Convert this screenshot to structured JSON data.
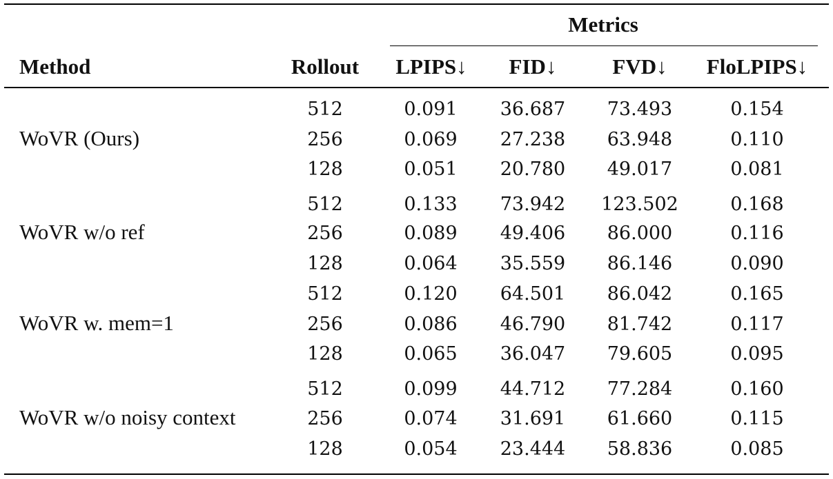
{
  "table": {
    "group_header": "Metrics",
    "columns": {
      "method": "Method",
      "rollout": "Rollout",
      "lpips": "LPIPS↓",
      "fid": "FID↓",
      "fvd": "FVD↓",
      "flolpips": "FloLPIPS↓"
    },
    "groups": [
      {
        "method": "WoVR (Ours)",
        "rows": [
          {
            "rollout": "512",
            "lpips": "0.091",
            "fid": "36.687",
            "fvd": "73.493",
            "flolpips": "0.154"
          },
          {
            "rollout": "256",
            "lpips": "0.069",
            "fid": "27.238",
            "fvd": "63.948",
            "flolpips": "0.110"
          },
          {
            "rollout": "128",
            "lpips": "0.051",
            "fid": "20.780",
            "fvd": "49.017",
            "flolpips": "0.081"
          }
        ]
      },
      {
        "method": "WoVR w/o ref",
        "rows": [
          {
            "rollout": "512",
            "lpips": "0.133",
            "fid": "73.942",
            "fvd": "123.502",
            "flolpips": "0.168"
          },
          {
            "rollout": "256",
            "lpips": "0.089",
            "fid": "49.406",
            "fvd": "86.000",
            "flolpips": "0.116"
          },
          {
            "rollout": "128",
            "lpips": "0.064",
            "fid": "35.559",
            "fvd": "86.146",
            "flolpips": "0.090"
          }
        ]
      },
      {
        "method": "WoVR w. mem=1",
        "rows": [
          {
            "rollout": "512",
            "lpips": "0.120",
            "fid": "64.501",
            "fvd": "86.042",
            "flolpips": "0.165"
          },
          {
            "rollout": "256",
            "lpips": "0.086",
            "fid": "46.790",
            "fvd": "81.742",
            "flolpips": "0.117"
          },
          {
            "rollout": "128",
            "lpips": "0.065",
            "fid": "36.047",
            "fvd": "79.605",
            "flolpips": "0.095"
          }
        ]
      },
      {
        "method": "WoVR w/o noisy context",
        "rows": [
          {
            "rollout": "512",
            "lpips": "0.099",
            "fid": "44.712",
            "fvd": "77.284",
            "flolpips": "0.160"
          },
          {
            "rollout": "256",
            "lpips": "0.074",
            "fid": "31.691",
            "fvd": "61.660",
            "flolpips": "0.115"
          },
          {
            "rollout": "128",
            "lpips": "0.054",
            "fid": "23.444",
            "fvd": "58.836",
            "flolpips": "0.085"
          }
        ]
      }
    ]
  }
}
